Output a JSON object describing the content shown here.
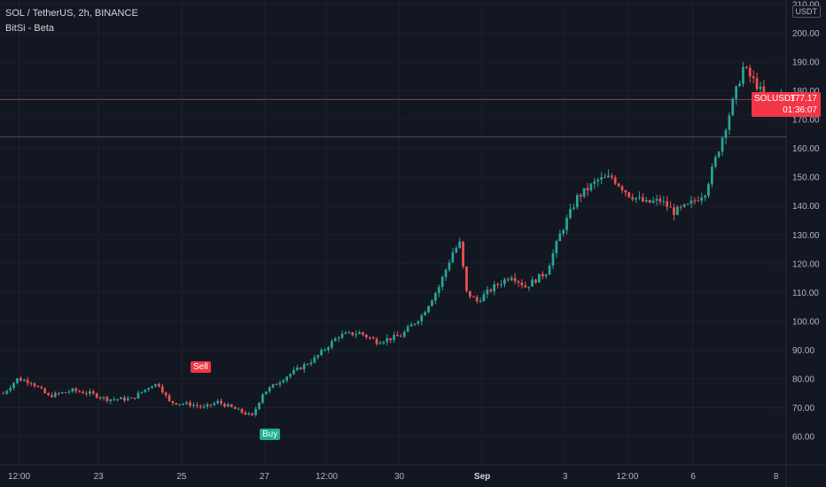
{
  "header": {
    "title": "SOL / TetherUS, 2h, BINANCE",
    "indicator": "BitSi - Beta"
  },
  "price_axis": {
    "currency": "USDT"
  },
  "last_price": {
    "symbol": "SOLUSDT",
    "price": "177.17",
    "countdown": "01:36:07",
    "color": "#f23645"
  },
  "signals": {
    "sell": "Sell",
    "buy": "Buy"
  },
  "colors": {
    "background": "#131722",
    "up": "#26a69a",
    "down": "#ef5350"
  },
  "chart_data": {
    "type": "candlestick",
    "title": "SOL / TetherUS, 2h, BINANCE",
    "ylim": [
      50,
      210
    ],
    "y_ticks": [
      60,
      70,
      80,
      90,
      100,
      110,
      120,
      130,
      140,
      150,
      160,
      170,
      180,
      190,
      200,
      210
    ],
    "y_tick_labels": [
      "60.00",
      "70.00",
      "80.00",
      "90.00",
      "100.00",
      "110.00",
      "120.00",
      "130.00",
      "140.00",
      "150.00",
      "160.00",
      "170.00",
      "180.00",
      "190.00",
      "200.00",
      "210.00"
    ],
    "x_ticks": [
      "12:00",
      "23",
      "25",
      "27",
      "12:00",
      "30",
      "Sep",
      "3",
      "12:00",
      "6",
      "8"
    ],
    "x_tick_bars": [
      5,
      28,
      52,
      76,
      94,
      115,
      139,
      163,
      181,
      200,
      224
    ],
    "bold_x_tick": "Sep",
    "horizontal_levels": [
      177,
      164
    ],
    "bar_count": 227,
    "waypoints": [
      [
        0,
        75
      ],
      [
        4,
        80
      ],
      [
        8,
        79
      ],
      [
        13,
        74
      ],
      [
        20,
        76
      ],
      [
        25,
        75
      ],
      [
        30,
        73
      ],
      [
        37,
        73
      ],
      [
        43,
        78
      ],
      [
        45,
        78
      ],
      [
        48,
        72
      ],
      [
        55,
        71
      ],
      [
        58,
        70
      ],
      [
        62,
        72
      ],
      [
        66,
        70
      ],
      [
        70,
        68
      ],
      [
        72,
        67
      ],
      [
        75,
        75
      ],
      [
        82,
        81
      ],
      [
        90,
        87
      ],
      [
        97,
        95
      ],
      [
        103,
        96
      ],
      [
        108,
        93
      ],
      [
        115,
        95
      ],
      [
        121,
        102
      ],
      [
        126,
        112
      ],
      [
        130,
        124
      ],
      [
        132,
        127
      ],
      [
        134,
        110
      ],
      [
        137,
        107
      ],
      [
        142,
        112
      ],
      [
        147,
        116
      ],
      [
        151,
        112
      ],
      [
        157,
        117
      ],
      [
        161,
        130
      ],
      [
        166,
        143
      ],
      [
        172,
        149
      ],
      [
        176,
        150
      ],
      [
        181,
        144
      ],
      [
        186,
        141
      ],
      [
        190,
        142
      ],
      [
        194,
        138
      ],
      [
        198,
        140
      ],
      [
        203,
        145
      ],
      [
        207,
        160
      ],
      [
        211,
        176
      ],
      [
        214,
        188
      ],
      [
        218,
        182
      ],
      [
        220,
        178
      ]
    ],
    "signals": [
      {
        "label": "Sell",
        "bar": 58,
        "price": 82
      },
      {
        "label": "Buy",
        "bar": 77,
        "price": 66
      }
    ]
  }
}
